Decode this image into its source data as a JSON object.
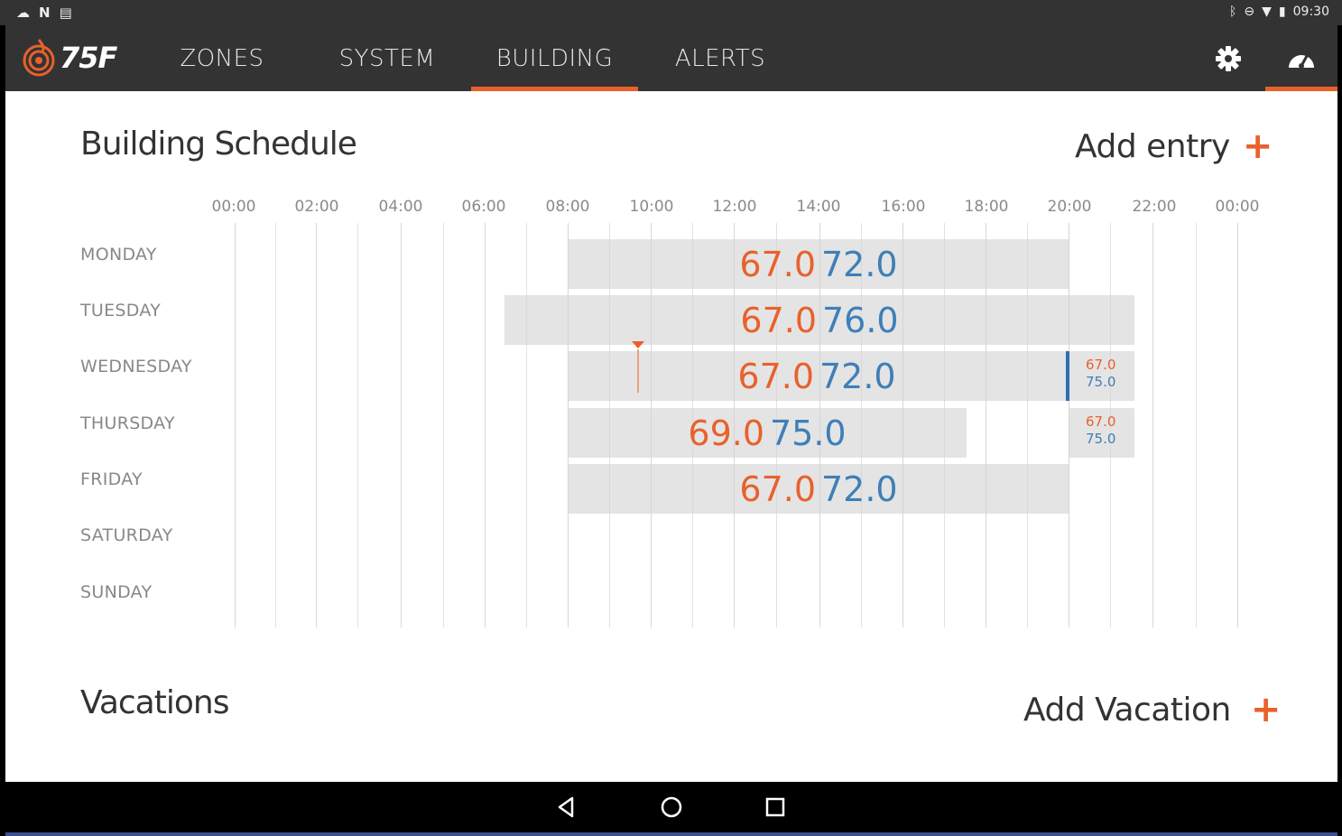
{
  "status_bar": {
    "time": "09:30",
    "left_icons": [
      "cloud-icon",
      "n-icon",
      "clipboard-icon"
    ],
    "right_icons": [
      "bluetooth-icon",
      "do-not-disturb-icon",
      "wifi-icon",
      "battery-icon"
    ]
  },
  "app": {
    "logo_text": "75F",
    "tabs": [
      {
        "label": "ZONES",
        "active": false
      },
      {
        "label": "SYSTEM",
        "active": false
      },
      {
        "label": "BUILDING",
        "active": true
      },
      {
        "label": "ALERTS",
        "active": false
      }
    ],
    "accent": "#e8612c",
    "cool_color": "#3f7fb7"
  },
  "schedule": {
    "title": "Building Schedule",
    "add_entry_label": "Add entry",
    "add_icon": "+",
    "hours": [
      "00:00",
      "02:00",
      "04:00",
      "06:00",
      "08:00",
      "10:00",
      "12:00",
      "14:00",
      "16:00",
      "18:00",
      "20:00",
      "22:00",
      "00:00"
    ],
    "days": [
      "MONDAY",
      "TUESDAY",
      "WEDNESDAY",
      "THURSDAY",
      "FRIDAY",
      "SATURDAY",
      "SUNDAY"
    ],
    "entries": [
      {
        "day": "MONDAY",
        "start": "08:00",
        "end": "20:00",
        "heat": "67.0",
        "cool": "72.0"
      },
      {
        "day": "TUESDAY",
        "start": "06:30",
        "end": "21:30",
        "heat": "67.0",
        "cool": "76.0"
      },
      {
        "day": "WEDNESDAY",
        "start": "08:00",
        "end": "20:00",
        "heat": "67.0",
        "cool": "72.0"
      },
      {
        "day": "WEDNESDAY",
        "start": "20:00",
        "end": "21:30",
        "heat": "67.0",
        "cool": "75.0"
      },
      {
        "day": "THURSDAY",
        "start": "08:00",
        "end": "17:30",
        "heat": "69.0",
        "cool": "75.0"
      },
      {
        "day": "THURSDAY",
        "start": "20:00",
        "end": "21:30",
        "heat": "67.0",
        "cool": "75.0"
      },
      {
        "day": "FRIDAY",
        "start": "08:00",
        "end": "20:00",
        "heat": "67.0",
        "cool": "72.0"
      }
    ]
  },
  "vacations": {
    "title": "Vacations",
    "add_label": "Add Vacation",
    "add_icon": "+"
  },
  "nav": {
    "icons": [
      "back-icon",
      "home-icon",
      "recents-icon"
    ]
  }
}
